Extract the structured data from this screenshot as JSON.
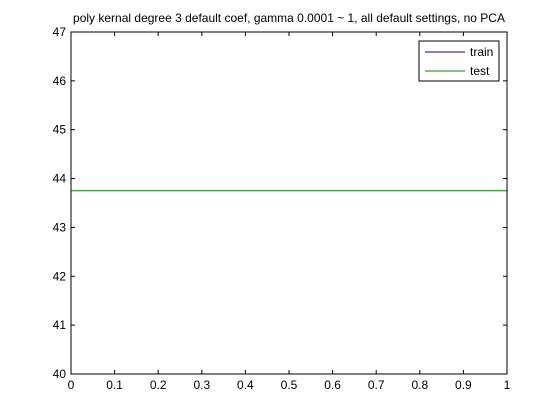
{
  "chart_data": {
    "type": "line",
    "title": "poly kernal degree 3 default coef, gamma 0.0001 ~ 1, all default settings, no PCA",
    "xlabel": "",
    "ylabel": "",
    "xlim": [
      0,
      1
    ],
    "ylim": [
      40,
      47
    ],
    "xticks": [
      "0",
      "0.1",
      "0.2",
      "0.3",
      "0.4",
      "0.5",
      "0.6",
      "0.7",
      "0.8",
      "0.9",
      "1"
    ],
    "yticks": [
      "40",
      "41",
      "42",
      "43",
      "44",
      "45",
      "46",
      "47"
    ],
    "grid": false,
    "legend_position": "top-right",
    "series": [
      {
        "name": "train",
        "color": "#00008b",
        "x": [],
        "y": []
      },
      {
        "name": "test",
        "color": "#008000",
        "x": [
          0,
          1
        ],
        "y": [
          43.75,
          43.75
        ]
      }
    ]
  }
}
